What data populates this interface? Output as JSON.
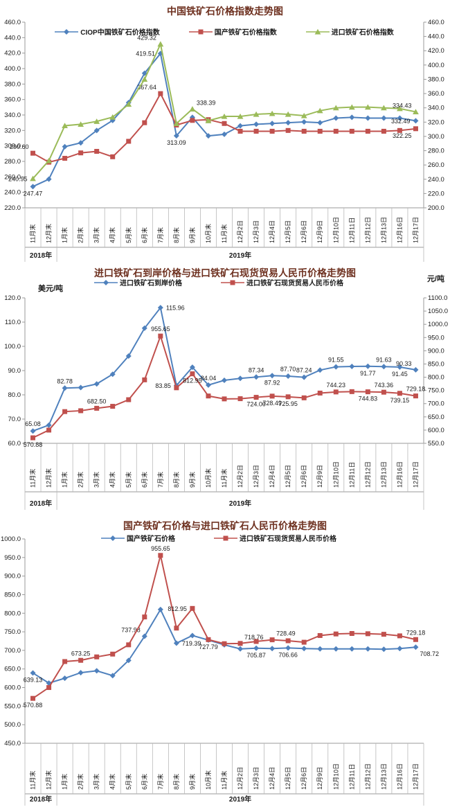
{
  "style": {
    "title_color": "#6e3120",
    "axis_text_color": "#1a1a1a",
    "grid_color": "#9a9a9a"
  },
  "chart_data": [
    {
      "type": "line",
      "title": "中国铁矿石价格指数走势图",
      "categories": [
        "11月末",
        "12月末",
        "1月末",
        "2月末",
        "3月末",
        "4月末",
        "5月末",
        "6月末",
        "7月末",
        "8月末",
        "9月末",
        "10月末",
        "11月末",
        "12月2日",
        "12月3日",
        "12月4日",
        "12月5日",
        "12月6日",
        "12月9日",
        "12月10日",
        "12月11日",
        "12月12日",
        "12月13日",
        "12月16日",
        "12月17日"
      ],
      "year_bands": [
        {
          "label": "2018年",
          "from": 0,
          "to": 1
        },
        {
          "label": "2019年",
          "from": 2,
          "to": 24
        }
      ],
      "left_axis": {
        "min": 220,
        "max": 460,
        "ticks": [
          "460.0",
          "440.0",
          "420.0",
          "400.0",
          "380.0",
          "360.0",
          "340.0",
          "320.0",
          "300.0",
          "280.0",
          "260.0",
          "240.0",
          "220.0"
        ]
      },
      "right_axis": {
        "min": 200,
        "max": 460,
        "ticks": [
          "460.0",
          "440.0",
          "420.0",
          "400.0",
          "380.0",
          "360.0",
          "340.0",
          "320.0",
          "300.0",
          "280.0",
          "260.0",
          "240.0",
          "220.0",
          "200.0"
        ]
      },
      "series": [
        {
          "name": "CIOP中国铁矿石价格指数",
          "color": "#4F81BD",
          "marker": "diamond",
          "axis": "left",
          "values": [
            247.47,
            257,
            299,
            304,
            320,
            333,
            356,
            394,
            419.51,
            313.09,
            337,
            313,
            315,
            326,
            328,
            329,
            330,
            331,
            330,
            336,
            337,
            336,
            336,
            336,
            332.49
          ],
          "point_labels": [
            {
              "i": 0,
              "text": "247.47",
              "pos": "below"
            },
            {
              "i": 8,
              "text": "419.51",
              "pos": "left"
            },
            {
              "i": 9,
              "text": "313.09",
              "pos": "below"
            },
            {
              "i": 24,
              "text": "332.49",
              "pos": "left"
            }
          ]
        },
        {
          "name": "国产铁矿石价格指数",
          "color": "#C0504D",
          "marker": "square",
          "axis": "left",
          "values": [
            290.6,
            279,
            284,
            291,
            293,
            286,
            306,
            330,
            367.64,
            327,
            333,
            334,
            329,
            319,
            319,
            319,
            320,
            319,
            319,
            319,
            319,
            319,
            319,
            320,
            322.25
          ],
          "point_labels": [
            {
              "i": 0,
              "text": "290.60",
              "pos": "above-left"
            },
            {
              "i": 8,
              "text": "367.64",
              "pos": "above-left"
            },
            {
              "i": 24,
              "text": "322.25",
              "pos": "below-left"
            }
          ]
        },
        {
          "name": "进口铁矿石价格指数",
          "color": "#9BBB59",
          "marker": "triangle",
          "axis": "right",
          "values": [
            240.95,
            266,
            315,
            317,
            321,
            327,
            345,
            380,
            429.32,
            318,
            338.39,
            322,
            328,
            328,
            331,
            332,
            331,
            329,
            336,
            340,
            341,
            341,
            340,
            339,
            334.43
          ],
          "point_labels": [
            {
              "i": 0,
              "text": "240.95",
              "pos": "left"
            },
            {
              "i": 8,
              "text": "429.32",
              "pos": "above-left"
            },
            {
              "i": 10,
              "text": "338.39",
              "pos": "above-right"
            },
            {
              "i": 24,
              "text": "334.43",
              "pos": "above-left"
            }
          ]
        }
      ]
    },
    {
      "type": "line",
      "title": "进口铁矿石到岸价格与进口铁矿石现货贸易人民币价格走势图",
      "left_unit": "美元/吨",
      "right_unit": "元/吨",
      "categories": [
        "11月末",
        "12月末",
        "1月末",
        "2月末",
        "3月末",
        "4月末",
        "5月末",
        "6月末",
        "7月末",
        "8月末",
        "9月末",
        "10月末",
        "11月末",
        "12月2日",
        "12月3日",
        "12月4日",
        "12月5日",
        "12月6日",
        "12月9日",
        "12月10日",
        "12月11日",
        "12月12日",
        "12月13日",
        "12月16日",
        "12月17日"
      ],
      "year_bands": [
        {
          "label": "2018年",
          "from": 0,
          "to": 1
        },
        {
          "label": "2019年",
          "from": 2,
          "to": 24
        }
      ],
      "left_axis": {
        "min": 60,
        "max": 120,
        "ticks": [
          "120.0",
          "110.0",
          "100.0",
          "90.0",
          "80.0",
          "70.0",
          "60.0"
        ]
      },
      "right_axis": {
        "min": 550,
        "max": 1100,
        "ticks": [
          "1100.0",
          "1050.0",
          "1000.0",
          "950.0",
          "900.0",
          "850.0",
          "800.0",
          "750.0",
          "700.0",
          "650.0",
          "600.0",
          "550.0"
        ]
      },
      "series": [
        {
          "name": "进口铁矿石到岸价格",
          "color": "#4F81BD",
          "marker": "diamond",
          "axis": "left",
          "values": [
            65.08,
            67.5,
            82.78,
            83,
            84.5,
            88.5,
            96,
            107.5,
            115.96,
            83.85,
            91.4,
            84.04,
            86,
            86.8,
            87.34,
            87.92,
            87.7,
            87.24,
            90.2,
            91.55,
            91.7,
            91.77,
            91.63,
            91.45,
            90.33
          ],
          "point_labels": [
            {
              "i": 0,
              "text": "65.08",
              "pos": "above"
            },
            {
              "i": 2,
              "text": "82.78",
              "pos": "above"
            },
            {
              "i": 8,
              "text": "115.96",
              "pos": "right"
            },
            {
              "i": 9,
              "text": "83.85",
              "pos": "left"
            },
            {
              "i": 11,
              "text": "84.04",
              "pos": "above"
            },
            {
              "i": 14,
              "text": "87.34",
              "pos": "above"
            },
            {
              "i": 15,
              "text": "87.92",
              "pos": "below"
            },
            {
              "i": 16,
              "text": "87.70",
              "pos": "above"
            },
            {
              "i": 17,
              "text": "87.24",
              "pos": "above"
            },
            {
              "i": 19,
              "text": "91.55",
              "pos": "above"
            },
            {
              "i": 21,
              "text": "91.77",
              "pos": "below"
            },
            {
              "i": 22,
              "text": "91.63",
              "pos": "above"
            },
            {
              "i": 23,
              "text": "91.45",
              "pos": "below"
            },
            {
              "i": 24,
              "text": "90.33",
              "pos": "above-left"
            }
          ]
        },
        {
          "name": "进口铁矿石现货贸易人民币价格",
          "color": "#C0504D",
          "marker": "square",
          "axis": "right",
          "values": [
            570.88,
            600,
            670,
            673.25,
            682.5,
            690,
            715,
            790,
            955.65,
            760,
            812.95,
            729,
            718,
            718.76,
            724.0,
            728.49,
            725.95,
            722,
            740,
            744.23,
            745.5,
            744.83,
            743.36,
            739.15,
            729.18
          ],
          "point_labels": [
            {
              "i": 0,
              "text": "570.88",
              "pos": "below"
            },
            {
              "i": 4,
              "text": "682.50",
              "pos": "above"
            },
            {
              "i": 8,
              "text": "955.65",
              "pos": "above"
            },
            {
              "i": 10,
              "text": "812.95",
              "pos": "below"
            },
            {
              "i": 14,
              "text": "724.00",
              "pos": "below"
            },
            {
              "i": 15,
              "text": "728.49",
              "pos": "below"
            },
            {
              "i": 16,
              "text": "725.95",
              "pos": "below"
            },
            {
              "i": 19,
              "text": "744.23",
              "pos": "above"
            },
            {
              "i": 21,
              "text": "744.83",
              "pos": "below"
            },
            {
              "i": 22,
              "text": "743.36",
              "pos": "above"
            },
            {
              "i": 23,
              "text": "739.15",
              "pos": "below"
            },
            {
              "i": 24,
              "text": "729.18",
              "pos": "above"
            }
          ]
        }
      ]
    },
    {
      "type": "line",
      "title": "国产铁矿石价格与进口铁矿石人民币价格走势图",
      "categories": [
        "11月末",
        "12月末",
        "1月末",
        "2月末",
        "3月末",
        "4月末",
        "5月末",
        "6月末",
        "7月末",
        "8月末",
        "9月末",
        "10月末",
        "11月末",
        "12月2日",
        "12月3日",
        "12月4日",
        "12月5日",
        "12月6日",
        "12月9日",
        "12月10日",
        "12月11日",
        "12月12日",
        "12月13日",
        "12月16日",
        "12月17日"
      ],
      "year_bands": [
        {
          "label": "2018年",
          "from": 0,
          "to": 1
        },
        {
          "label": "2019年",
          "from": 2,
          "to": 24
        }
      ],
      "left_axis": {
        "min": 450,
        "max": 1000,
        "ticks": [
          "1000.0",
          "950.0",
          "900.0",
          "850.0",
          "800.0",
          "750.0",
          "700.0",
          "650.0",
          "600.0",
          "550.0",
          "500.0",
          "450.0"
        ]
      },
      "series": [
        {
          "name": "国产铁矿石价格",
          "color": "#4F81BD",
          "marker": "diamond",
          "axis": "left",
          "values": [
            639.13,
            612,
            625,
            640,
            645,
            632,
            673,
            737.98,
            810,
            719.39,
            740,
            727.79,
            715,
            704,
            705.87,
            705,
            706.66,
            705,
            704,
            704,
            704,
            704,
            703,
            705,
            708.72
          ],
          "point_labels": [
            {
              "i": 0,
              "text": "639.13",
              "pos": "below"
            },
            {
              "i": 7,
              "text": "737.98",
              "pos": "above-left"
            },
            {
              "i": 9,
              "text": "719.39",
              "pos": "right"
            },
            {
              "i": 11,
              "text": "727.79",
              "pos": "below"
            },
            {
              "i": 14,
              "text": "705.87",
              "pos": "below"
            },
            {
              "i": 16,
              "text": "706.66",
              "pos": "below"
            },
            {
              "i": 24,
              "text": "708.72",
              "pos": "below-right"
            }
          ]
        },
        {
          "name": "进口铁矿石现货贸易人民币价格",
          "color": "#C0504D",
          "marker": "square",
          "axis": "left",
          "values": [
            570.88,
            600,
            670,
            673.25,
            682.5,
            690,
            715,
            790,
            955.65,
            760,
            812.95,
            729,
            718,
            718.76,
            724.0,
            728.49,
            725.95,
            722,
            740,
            744.23,
            745.5,
            744.83,
            743.36,
            739.15,
            729.18
          ],
          "point_labels": [
            {
              "i": 0,
              "text": "570.88",
              "pos": "below"
            },
            {
              "i": 3,
              "text": "673.25",
              "pos": "above"
            },
            {
              "i": 8,
              "text": "955.65",
              "pos": "above"
            },
            {
              "i": 10,
              "text": "812.95",
              "pos": "left"
            },
            {
              "i": 13,
              "text": "718.76",
              "pos": "above-right"
            },
            {
              "i": 15,
              "text": "728.49",
              "pos": "above-right"
            },
            {
              "i": 24,
              "text": "729.18",
              "pos": "above"
            }
          ]
        }
      ]
    }
  ]
}
